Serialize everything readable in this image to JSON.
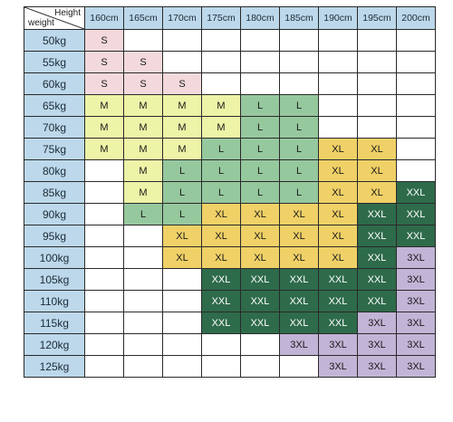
{
  "corner": {
    "height_label": "Height",
    "weight_label": "weight"
  },
  "heights": [
    "160cm",
    "165cm",
    "170cm",
    "175cm",
    "180cm",
    "185cm",
    "190cm",
    "195cm",
    "200cm"
  ],
  "weights": [
    "50kg",
    "55kg",
    "60kg",
    "65kg",
    "70kg",
    "75kg",
    "80kg",
    "85kg",
    "90kg",
    "95kg",
    "100kg",
    "105kg",
    "110kg",
    "115kg",
    "120kg",
    "125kg"
  ],
  "sizes": [
    [
      "S",
      "",
      "",
      "",
      "",
      "",
      "",
      "",
      ""
    ],
    [
      "S",
      "S",
      "",
      "",
      "",
      "",
      "",
      "",
      ""
    ],
    [
      "S",
      "S",
      "S",
      "",
      "",
      "",
      "",
      "",
      ""
    ],
    [
      "M",
      "M",
      "M",
      "M",
      "L",
      "L",
      "",
      "",
      ""
    ],
    [
      "M",
      "M",
      "M",
      "M",
      "L",
      "L",
      "",
      "",
      ""
    ],
    [
      "M",
      "M",
      "M",
      "L",
      "L",
      "L",
      "XL",
      "XL",
      ""
    ],
    [
      "",
      "M",
      "L",
      "L",
      "L",
      "L",
      "XL",
      "XL",
      ""
    ],
    [
      "",
      "M",
      "L",
      "L",
      "L",
      "L",
      "XL",
      "XL",
      "XXL"
    ],
    [
      "",
      "L",
      "L",
      "XL",
      "XL",
      "XL",
      "XL",
      "XXL",
      "XXL"
    ],
    [
      "",
      "",
      "XL",
      "XL",
      "XL",
      "XL",
      "XL",
      "XXL",
      "XXL"
    ],
    [
      "",
      "",
      "XL",
      "XL",
      "XL",
      "XL",
      "XL",
      "XXL",
      "3XL"
    ],
    [
      "",
      "",
      "",
      "XXL",
      "XXL",
      "XXL",
      "XXL",
      "XXL",
      "3XL"
    ],
    [
      "",
      "",
      "",
      "XXL",
      "XXL",
      "XXL",
      "XXL",
      "XXL",
      "3XL"
    ],
    [
      "",
      "",
      "",
      "XXL",
      "XXL",
      "XXL",
      "XXL",
      "3XL",
      "3XL"
    ],
    [
      "",
      "",
      "",
      "",
      "",
      "3XL",
      "3XL",
      "3XL",
      "3XL"
    ],
    [
      "",
      "",
      "",
      "",
      "",
      "",
      "3XL",
      "3XL",
      "3XL"
    ]
  ],
  "colors": {
    "header_bg": "#bcd8ea",
    "S": "#f3d9dc",
    "M": "#edf3a7",
    "L": "#96c89e",
    "XL": "#f0d167",
    "XXL": "#2e6b4b",
    "3XL": "#c2b4d6"
  }
}
